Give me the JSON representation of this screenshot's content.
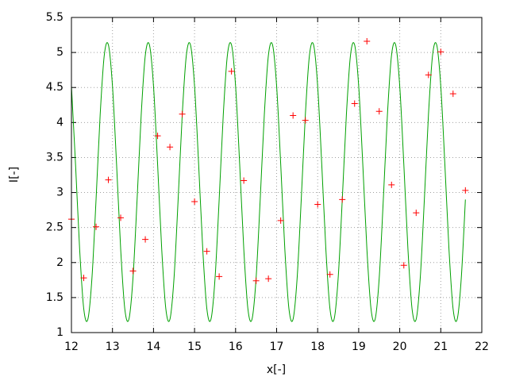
{
  "chart_data": {
    "type": "scatter",
    "xlabel": "x[-]",
    "ylabel": "I[-]",
    "xlim": [
      12,
      22
    ],
    "xticks": [
      12,
      13,
      14,
      15,
      16,
      17,
      18,
      19,
      20,
      21,
      22
    ],
    "ylim": [
      1,
      5.5
    ],
    "yticks": [
      1,
      1.5,
      2,
      2.5,
      3,
      3.5,
      4,
      4.5,
      5,
      5.5
    ],
    "grid": true,
    "series": [
      {
        "type": "line",
        "color": "#00a000",
        "x": [
          12.0,
          12.1,
          12.2,
          12.3,
          12.4,
          12.5,
          12.6,
          12.7,
          12.8,
          12.9,
          13.0,
          13.1,
          13.2,
          13.3,
          13.4,
          13.5,
          13.6,
          13.7,
          13.8,
          13.9,
          14.0,
          14.1,
          14.2,
          14.3,
          14.4,
          14.5,
          14.6,
          14.7,
          14.8,
          14.9,
          15.0,
          15.1,
          15.2,
          15.3,
          15.4,
          15.5,
          15.6,
          15.7,
          15.8,
          15.9,
          16.0,
          16.1,
          16.2,
          16.3,
          16.4,
          16.5,
          16.6,
          16.7,
          16.8,
          16.9,
          17.0,
          17.1,
          17.2,
          17.3,
          17.4,
          17.5,
          17.6,
          17.7,
          17.8,
          17.9,
          18.0,
          18.1,
          18.2,
          18.3,
          18.4,
          18.5,
          18.6,
          18.7,
          18.8,
          18.9,
          19.0,
          19.1,
          19.2,
          19.3,
          19.4,
          19.5,
          19.6,
          19.7,
          19.8,
          19.9,
          20.0,
          20.1,
          20.2,
          20.3,
          20.4,
          20.5,
          20.6,
          20.7,
          20.8,
          20.9,
          21.0,
          21.1,
          21.2,
          21.3,
          21.4,
          21.5,
          21.6
        ],
        "values": [
          4.52,
          3.4,
          2.19,
          1.34,
          1.19,
          1.78,
          2.9,
          4.11,
          4.96,
          5.11,
          4.52,
          3.4,
          2.19,
          1.34,
          1.19,
          1.78,
          2.9,
          4.11,
          4.96,
          5.11,
          4.52,
          3.4,
          2.19,
          1.34,
          1.19,
          1.78,
          2.9,
          4.11,
          4.96,
          5.11,
          4.52,
          3.4,
          2.19,
          1.34,
          1.19,
          1.78,
          2.9,
          4.11,
          4.96,
          5.11,
          4.52,
          3.4,
          2.19,
          1.34,
          1.19,
          1.78,
          2.9,
          4.11,
          4.96,
          5.11,
          4.52,
          3.4,
          2.19,
          1.34,
          1.19,
          1.78,
          2.9,
          4.11,
          4.96,
          5.11,
          4.52,
          3.4,
          2.19,
          1.34,
          1.19,
          1.78,
          2.9,
          4.11,
          4.96,
          5.11,
          4.52,
          3.4,
          2.19,
          1.34,
          1.19,
          1.78,
          2.9,
          4.11,
          4.96,
          5.11,
          4.52,
          3.4,
          2.19,
          1.34,
          1.19,
          1.78,
          2.9,
          4.11,
          4.96,
          5.11,
          4.52,
          3.4,
          2.19,
          1.34,
          1.19,
          1.78,
          2.9
        ]
      },
      {
        "type": "scatter",
        "color": "#ff0000",
        "x": [
          12.0,
          12.3,
          12.6,
          12.9,
          13.2,
          13.5,
          13.8,
          14.1,
          14.4,
          14.7,
          15.0,
          15.3,
          15.6,
          15.9,
          16.2,
          16.5,
          16.8,
          17.1,
          17.4,
          17.7,
          18.0,
          18.3,
          18.6,
          18.9,
          19.2,
          19.5,
          19.8,
          20.1,
          20.4,
          20.7,
          21.0,
          21.3,
          21.6
        ],
        "values": [
          2.62,
          1.78,
          2.51,
          3.18,
          2.64,
          1.88,
          2.33,
          3.81,
          3.65,
          4.12,
          2.87,
          2.16,
          1.8,
          4.73,
          3.17,
          1.74,
          1.77,
          2.6,
          4.1,
          4.03,
          2.83,
          1.83,
          2.9,
          4.27,
          5.16,
          4.16,
          3.11,
          1.96,
          2.71,
          4.68,
          5.01,
          4.41,
          3.03
        ]
      }
    ]
  }
}
